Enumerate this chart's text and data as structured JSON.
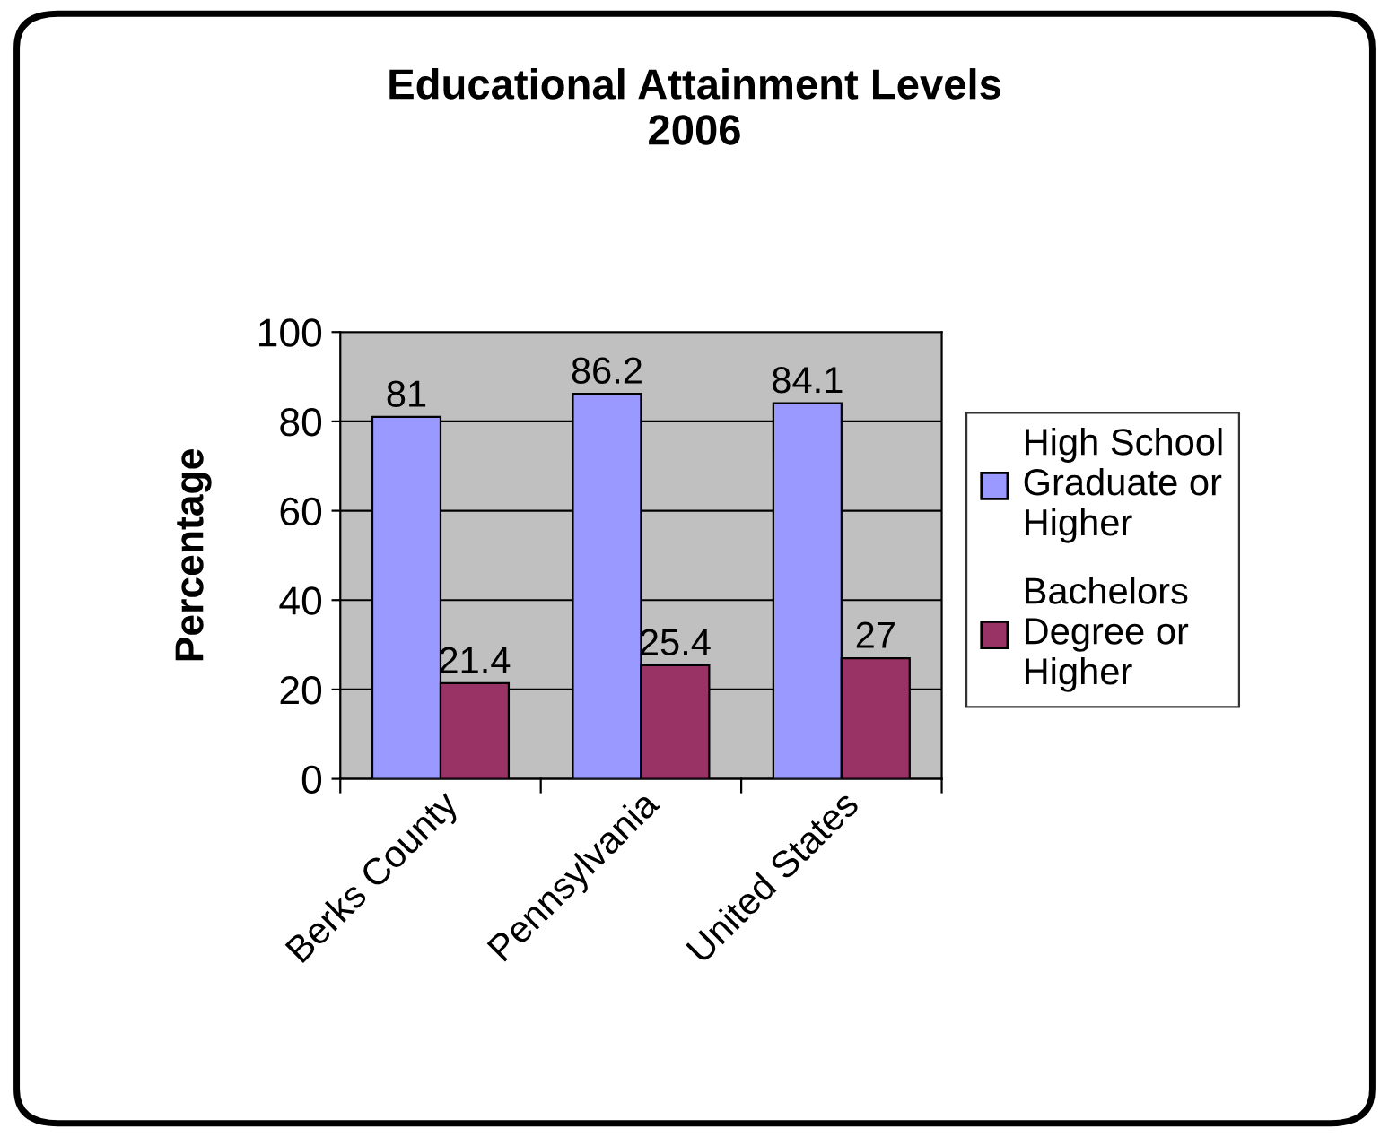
{
  "chart_data": {
    "type": "bar",
    "title": "Educational Attainment Levels\n2006",
    "ylabel": "Percentage",
    "categories": [
      "Berks County",
      "Pennsylvania",
      "United States"
    ],
    "series": [
      {
        "name": "High School Graduate or Higher",
        "color": "#9999ff",
        "values": [
          81,
          86.2,
          84.1
        ]
      },
      {
        "name": "Bachelors Degree or Higher",
        "color": "#993366",
        "values": [
          21.4,
          25.4,
          27
        ]
      }
    ],
    "ylim": [
      0,
      100
    ],
    "yticks": [
      0,
      20,
      40,
      60,
      80,
      100
    ],
    "grid": "y",
    "legend": "right",
    "data_labels": true
  }
}
